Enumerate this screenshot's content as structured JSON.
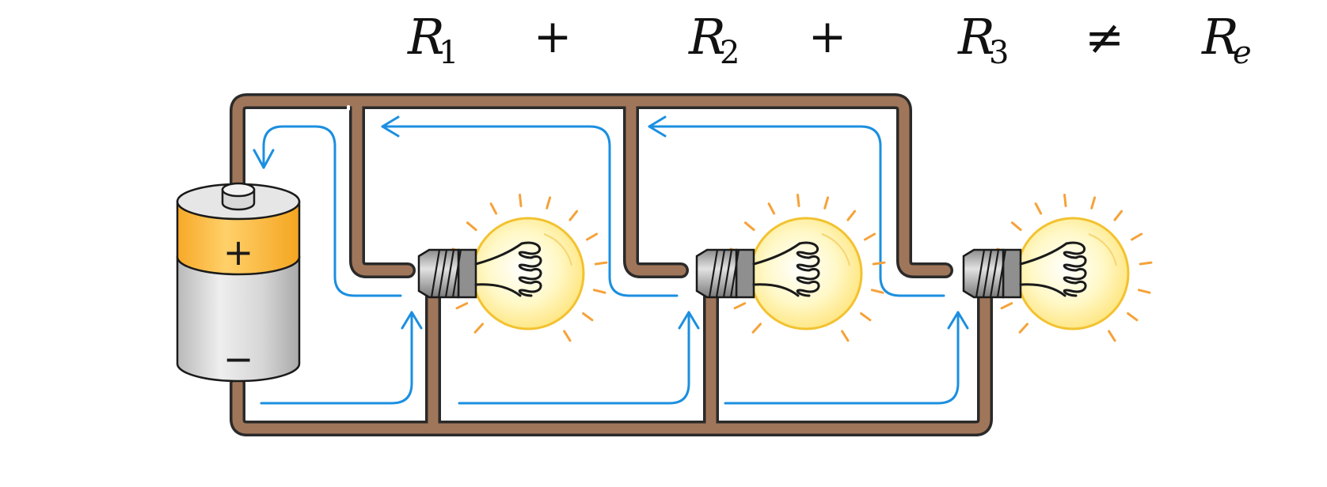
{
  "equation": {
    "terms": [
      {
        "symbol": "R",
        "subscript": "1"
      },
      {
        "op": "+"
      },
      {
        "symbol": "R",
        "subscript": "2"
      },
      {
        "op": "+"
      },
      {
        "symbol": "R",
        "subscript": "3"
      },
      {
        "op": "≠"
      },
      {
        "symbol": "R",
        "subscript": "e"
      }
    ]
  },
  "battery": {
    "positive_label": "+",
    "negative_label": "−"
  },
  "colors": {
    "wire": "#a0765a",
    "current_arrow": "#1b8fe0",
    "battery_cap": "#ffc240",
    "battery_body": "#d4d4d4",
    "bulb_glow": "#fff6b0",
    "bulb_ray": "#f5a23a"
  },
  "bulbs": [
    {
      "id": "bulb-1"
    },
    {
      "id": "bulb-2"
    },
    {
      "id": "bulb-3"
    }
  ]
}
